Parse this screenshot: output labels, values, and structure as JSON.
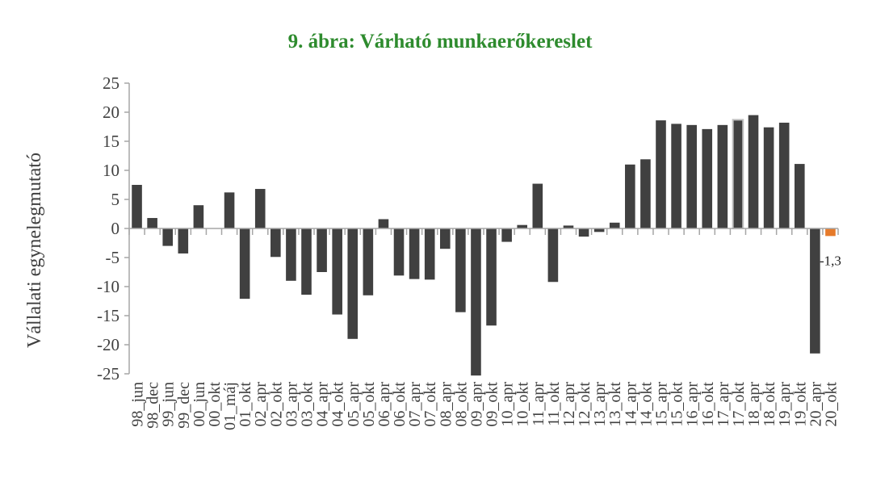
{
  "chart_data": {
    "type": "bar",
    "title": "9. ábra: Várható munkaerőkereslet",
    "xlabel": "",
    "ylabel": "Vállalati egynelegmutató",
    "ylim": [
      -25,
      25
    ],
    "yticks": [
      25,
      20,
      15,
      10,
      5,
      0,
      -5,
      -10,
      -15,
      -20,
      -25
    ],
    "grid": false,
    "categories": [
      "98_jun",
      "98_dec",
      "99_jun",
      "99_dec",
      "00_jun",
      "00_okt",
      "01_máj",
      "01_okt",
      "02_apr",
      "02_okt",
      "03_apr",
      "03_okt",
      "04_apr",
      "04_okt",
      "05_apr",
      "05_okt",
      "06_apr",
      "06_okt",
      "07_apr",
      "07_okt",
      "08_apr",
      "08_okt",
      "09_apr",
      "09_okt",
      "10_apr",
      "10_okt",
      "11_apr",
      "11_okt",
      "12_apr",
      "12_okt",
      "13_apr",
      "13_okt",
      "14_apr",
      "14_okt",
      "15_apr",
      "15_okt",
      "16_apr",
      "16_okt",
      "17_apr",
      "17_okt",
      "18_apr",
      "18_okt",
      "19_apr",
      "19_okt",
      "20_apr",
      "20_okt"
    ],
    "values": [
      7.5,
      1.8,
      -3.0,
      -4.3,
      4.0,
      0,
      6.2,
      -12.1,
      6.8,
      -4.9,
      -9.0,
      -11.4,
      -7.5,
      -14.8,
      -19.0,
      -11.5,
      1.6,
      -8.1,
      -8.7,
      -8.8,
      -3.5,
      -14.4,
      -25.3,
      -16.7,
      -2.3,
      0.6,
      7.7,
      -9.2,
      0.5,
      -1.4,
      -0.6,
      1.0,
      11.0,
      11.9,
      18.6,
      18.0,
      17.8,
      17.1,
      17.8,
      18.7,
      19.5,
      17.4,
      18.2,
      11.1,
      -21.5,
      -1.3
    ],
    "colors": {
      "default": "#404040",
      "highlight": "#e67a2a",
      "outline_bar": "#c0c0c0",
      "axis": "#a6a6a6",
      "title": "#2e8b2e"
    },
    "highlight_index": 45,
    "outlined_index": 39,
    "data_labels": [
      {
        "index": 45,
        "text": "-1,3"
      }
    ]
  }
}
